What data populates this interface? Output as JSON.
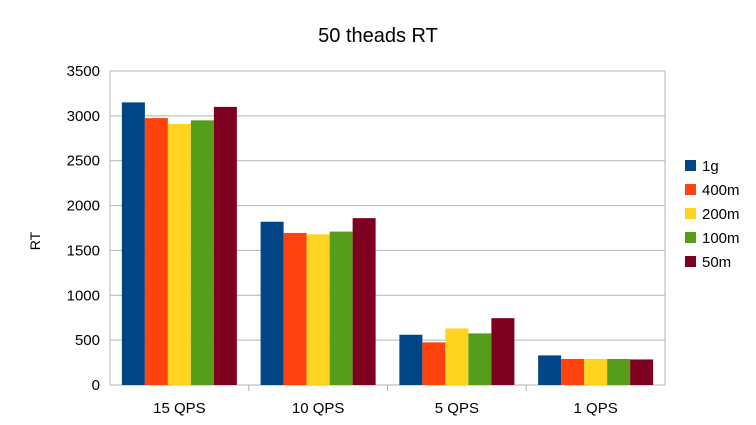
{
  "chart_data": {
    "type": "bar",
    "title": "50 theads RT",
    "xlabel": "",
    "ylabel": "RT",
    "ylim": [
      0,
      3500
    ],
    "yticks": [
      0,
      500,
      1000,
      1500,
      2000,
      2500,
      3000,
      3500
    ],
    "grid": true,
    "legend_position": "right",
    "categories": [
      "15 QPS",
      "10 QPS",
      "5 QPS",
      "1 QPS"
    ],
    "series": [
      {
        "name": "1g",
        "color": "#004586",
        "values": [
          3150,
          1820,
          560,
          330
        ]
      },
      {
        "name": "400m",
        "color": "#ff420e",
        "values": [
          2975,
          1695,
          475,
          290
        ]
      },
      {
        "name": "200m",
        "color": "#ffd320",
        "values": [
          2910,
          1680,
          630,
          290
        ]
      },
      {
        "name": "100m",
        "color": "#579d1c",
        "values": [
          2950,
          1710,
          575,
          290
        ]
      },
      {
        "name": "50m",
        "color": "#7e0021",
        "values": [
          3100,
          1860,
          745,
          285
        ]
      }
    ]
  }
}
